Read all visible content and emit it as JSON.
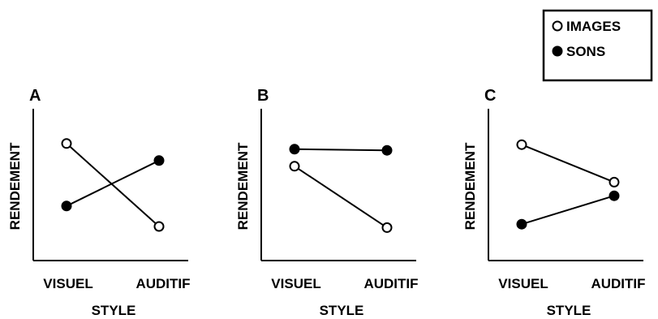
{
  "legend": {
    "items": [
      {
        "label": "IMAGES",
        "marker": "open-circle"
      },
      {
        "label": "SONS",
        "marker": "filled-circle"
      }
    ],
    "placement": "top-right"
  },
  "chart_data": [
    {
      "type": "line",
      "panel_label": "A",
      "xlabel": "STYLE",
      "ylabel": "RENDEMENT",
      "categories": [
        "VISUEL",
        "AUDITIF"
      ],
      "ylim": [
        0,
        10
      ],
      "yticks": false,
      "grid": false,
      "series": [
        {
          "name": "IMAGES",
          "marker": "open-circle",
          "values": [
            8.8,
            1.5
          ]
        },
        {
          "name": "SONS",
          "marker": "filled-circle",
          "values": [
            3.3,
            7.3
          ]
        }
      ]
    },
    {
      "type": "line",
      "panel_label": "B",
      "xlabel": "STYLE",
      "ylabel": "RENDEMENT",
      "categories": [
        "VISUEL",
        "AUDITIF"
      ],
      "ylim": [
        0,
        10
      ],
      "yticks": false,
      "grid": false,
      "series": [
        {
          "name": "IMAGES",
          "marker": "open-circle",
          "values": [
            6.8,
            1.4
          ]
        },
        {
          "name": "SONS",
          "marker": "filled-circle",
          "values": [
            8.3,
            8.2
          ]
        }
      ]
    },
    {
      "type": "line",
      "panel_label": "C",
      "xlabel": "STYLE",
      "ylabel": "RENDEMENT",
      "categories": [
        "VISUEL",
        "AUDITIF"
      ],
      "ylim": [
        0,
        10
      ],
      "yticks": false,
      "grid": false,
      "series": [
        {
          "name": "IMAGES",
          "marker": "open-circle",
          "values": [
            8.7,
            5.4
          ]
        },
        {
          "name": "SONS",
          "marker": "filled-circle",
          "values": [
            1.7,
            4.2
          ]
        }
      ]
    }
  ]
}
